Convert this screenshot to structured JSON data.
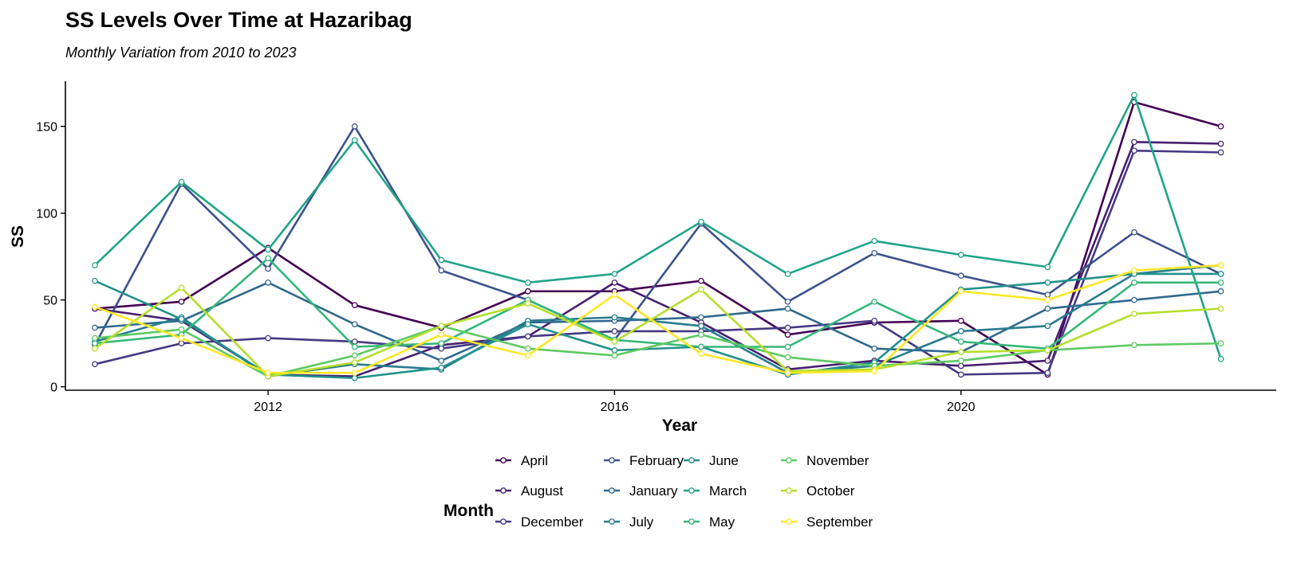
{
  "chart_data": {
    "type": "line",
    "title": "SS Levels Over Time at Hazaribag",
    "subtitle": "Monthly Variation from 2010 to 2023",
    "xlabel": "Year",
    "ylabel": "SS",
    "xlim": [
      2009.66,
      2023.64
    ],
    "ylim": [
      -2,
      176
    ],
    "x_ticks": [
      2012,
      2016,
      2020
    ],
    "y_ticks": [
      0,
      50,
      100,
      150
    ],
    "grid": false,
    "legend": {
      "title": "Month",
      "position": "bottom"
    },
    "x": [
      2010,
      2011,
      2012,
      2013,
      2014,
      2015,
      2016,
      2017,
      2018,
      2019,
      2020,
      2021,
      2022,
      2023
    ],
    "series": [
      {
        "name": "April",
        "color": "#440154",
        "values": [
          45,
          49,
          80,
          47,
          34,
          55,
          55,
          61,
          30,
          37,
          38,
          7,
          164,
          150
        ]
      },
      {
        "name": "August",
        "color": "#481F70",
        "values": [
          45,
          38,
          7,
          6,
          24,
          29,
          60,
          37,
          10,
          15,
          12,
          15,
          141,
          140
        ]
      },
      {
        "name": "December",
        "color": "#443983",
        "values": [
          13,
          25,
          28,
          26,
          22,
          29,
          32,
          32,
          34,
          38,
          7,
          8,
          136,
          135
        ]
      },
      {
        "name": "February",
        "color": "#3B528B",
        "values": [
          24,
          117,
          68,
          150,
          67,
          50,
          27,
          94,
          49,
          77,
          64,
          53,
          89,
          65
        ]
      },
      {
        "name": "January",
        "color": "#31688E",
        "values": [
          34,
          38,
          60,
          36,
          15,
          37,
          38,
          40,
          45,
          22,
          20,
          45,
          50,
          55
        ]
      },
      {
        "name": "July",
        "color": "#287C8E",
        "values": [
          26,
          40,
          6,
          13,
          10,
          38,
          40,
          35,
          8,
          12,
          32,
          35,
          65,
          70
        ]
      },
      {
        "name": "June",
        "color": "#21918C",
        "values": [
          61,
          39,
          7,
          5,
          11,
          36,
          21,
          23,
          7,
          14,
          56,
          60,
          65,
          65
        ]
      },
      {
        "name": "March",
        "color": "#20A486",
        "values": [
          70,
          118,
          79,
          142,
          73,
          60,
          65,
          95,
          65,
          84,
          76,
          69,
          168,
          16
        ]
      },
      {
        "name": "May",
        "color": "#35B779",
        "values": [
          25,
          30,
          74,
          23,
          25,
          50,
          27,
          23,
          23,
          49,
          26,
          22,
          60,
          60
        ]
      },
      {
        "name": "November",
        "color": "#5EC962",
        "values": [
          28,
          33,
          6,
          18,
          35,
          22,
          18,
          30,
          17,
          12,
          15,
          21,
          24,
          25
        ]
      },
      {
        "name": "October",
        "color": "#B5DE2B",
        "values": [
          22,
          57,
          6,
          14,
          35,
          48,
          26,
          56,
          9,
          10,
          20,
          21,
          42,
          45
        ]
      },
      {
        "name": "September",
        "color": "#FDE725",
        "values": [
          46,
          28,
          8,
          8,
          30,
          18,
          53,
          19,
          8,
          9,
          55,
          50,
          67,
          70
        ]
      }
    ]
  }
}
